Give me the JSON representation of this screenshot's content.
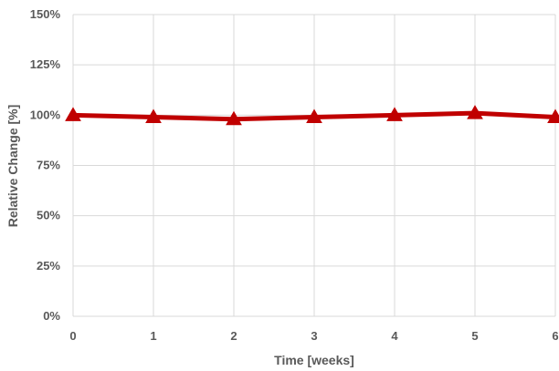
{
  "chart_data": {
    "type": "line",
    "x": [
      0,
      1,
      2,
      3,
      4,
      5,
      6
    ],
    "xticks": [
      "0",
      "1",
      "2",
      "3",
      "4",
      "5",
      "6"
    ],
    "series": [
      {
        "values": [
          100,
          99,
          98,
          99,
          100,
          101,
          99
        ],
        "color": "#C00000",
        "marker": "triangle"
      }
    ],
    "yticks": [
      "0%",
      "25%",
      "50%",
      "75%",
      "100%",
      "125%",
      "150%"
    ],
    "ylim": [
      0,
      150
    ],
    "xlim": [
      0,
      6
    ],
    "xlabel": "Time [weeks]",
    "ylabel": "Relative Change [%]",
    "grid": true,
    "gridColor": "#d9d9d9"
  }
}
